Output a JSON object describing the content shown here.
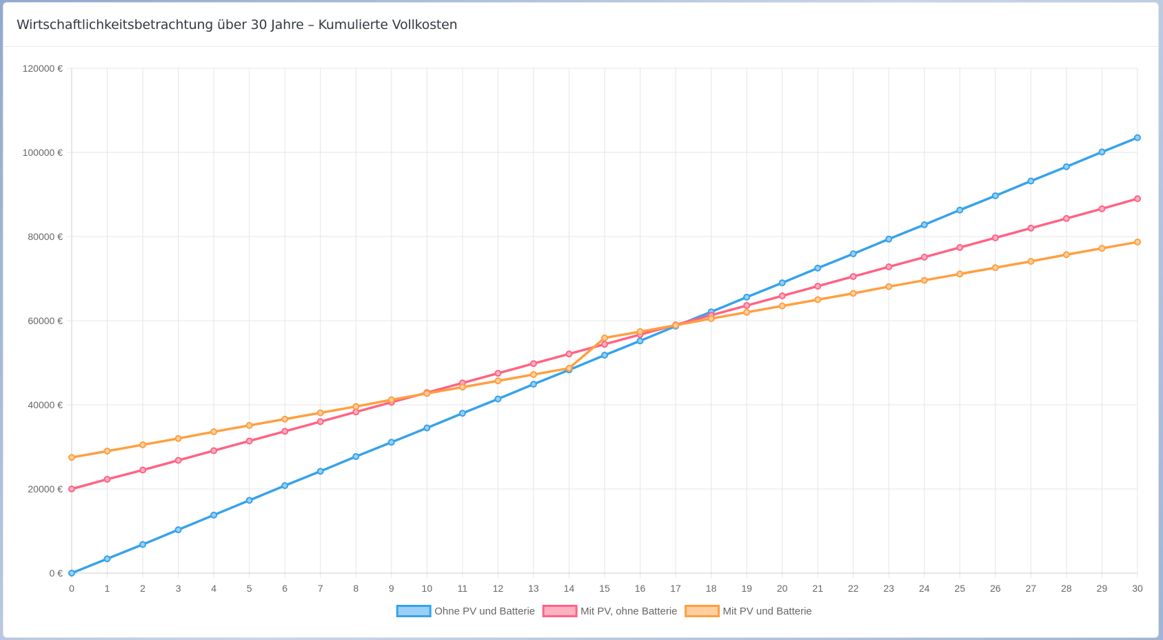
{
  "header": {
    "title": "Wirtschaftlichkeitsbetrachtung über 30 Jahre – Kumulierte Vollkosten"
  },
  "chart_data": {
    "type": "line",
    "title": "Wirtschaftlichkeitsbetrachtung über 30 Jahre – Kumulierte Vollkosten",
    "xlabel": "",
    "ylabel": "",
    "x": [
      0,
      1,
      2,
      3,
      4,
      5,
      6,
      7,
      8,
      9,
      10,
      11,
      12,
      13,
      14,
      15,
      16,
      17,
      18,
      19,
      20,
      21,
      22,
      23,
      24,
      25,
      26,
      27,
      28,
      29,
      30
    ],
    "ylim": [
      0,
      120000
    ],
    "y_ticks": [
      0,
      20000,
      40000,
      60000,
      80000,
      100000,
      120000
    ],
    "y_tick_suffix": " €",
    "grid": true,
    "legend_position": "bottom",
    "series": [
      {
        "name": "Ohne PV und Batterie",
        "color": "#36a2eb",
        "fill": "#9ad0f5",
        "values": [
          0,
          3400,
          6800,
          10300,
          13800,
          17300,
          20800,
          24200,
          27700,
          31100,
          34500,
          38000,
          41400,
          44900,
          48300,
          51800,
          55200,
          58700,
          62100,
          65600,
          69000,
          72500,
          75900,
          79400,
          82800,
          86300,
          89700,
          93200,
          96600,
          100100,
          103500
        ]
      },
      {
        "name": "Mit PV, ohne Batterie",
        "color": "#ff6384",
        "fill": "#ffb1c1",
        "values": [
          20000,
          22300,
          24500,
          26800,
          29100,
          31400,
          33700,
          36000,
          38300,
          40600,
          42900,
          45200,
          47500,
          49800,
          52100,
          54400,
          56700,
          59000,
          61300,
          63600,
          65900,
          68200,
          70500,
          72800,
          75100,
          77400,
          79700,
          82000,
          84300,
          86600,
          89000
        ]
      },
      {
        "name": "Mit PV und Batterie",
        "color": "#ff9f40",
        "fill": "#ffcf9f",
        "values": [
          27500,
          29000,
          30500,
          32000,
          33600,
          35100,
          36600,
          38100,
          39600,
          41200,
          42700,
          44200,
          45700,
          47200,
          48700,
          55900,
          57400,
          58900,
          60500,
          62000,
          63500,
          65000,
          66500,
          68100,
          69600,
          71100,
          72600,
          74100,
          75700,
          77200,
          78700
        ]
      }
    ]
  }
}
